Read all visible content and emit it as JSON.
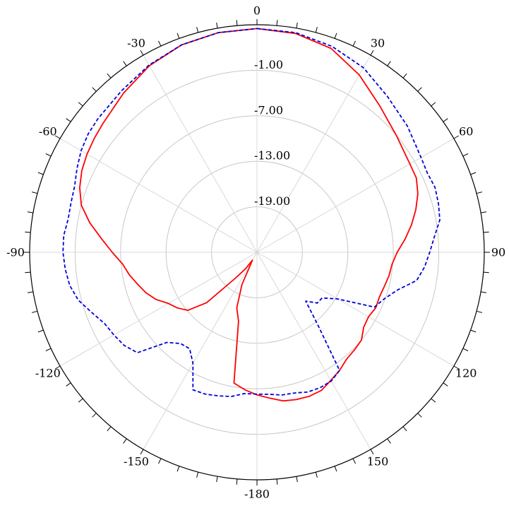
{
  "chart_data": {
    "type": "polar-line",
    "title": "",
    "angle_ticks": [
      0,
      30,
      60,
      90,
      120,
      150,
      180,
      -150,
      -120,
      -90,
      -60,
      -30
    ],
    "angle_labels": [
      "0",
      "30",
      "60",
      "90",
      "120",
      "150",
      "-180",
      "-150",
      "-120",
      "-90",
      "-60",
      "-30"
    ],
    "radial_ticks": [
      -19,
      -13,
      -7,
      -1
    ],
    "radial_labels": [
      "-19.00",
      "-13.00",
      "-7.00",
      "-1.00"
    ],
    "r_range": [
      -25,
      5
    ],
    "grid": true,
    "series": [
      {
        "color": "#ff0000",
        "style": "solid",
        "angles": [
          0,
          10,
          20,
          30,
          40,
          50,
          60,
          65,
          70,
          75,
          80,
          85,
          90,
          95,
          100,
          105,
          110,
          115,
          120,
          125,
          130,
          135,
          140,
          145,
          150,
          155,
          160,
          165,
          170,
          175,
          180,
          -175,
          -170,
          -165,
          -160,
          -155,
          -150,
          -145,
          -140,
          -135,
          -130,
          -125,
          -120,
          -115,
          -110,
          -105,
          -100,
          -95,
          -90,
          -85,
          -80,
          -75,
          -70,
          -65,
          -60,
          -55,
          -50,
          -40,
          -30,
          -20,
          -10,
          0
        ],
        "values": [
          4.5,
          4.3,
          3.6,
          2.0,
          0.2,
          -1.0,
          -1.7,
          -1.8,
          -2.4,
          -3.3,
          -4.3,
          -5.4,
          -6.5,
          -7.1,
          -7.3,
          -7.6,
          -7.8,
          -7.7,
          -8.0,
          -7.8,
          -7.0,
          -6.8,
          -6.6,
          -6.0,
          -5.5,
          -4.9,
          -4.8,
          -4.9,
          -5.1,
          -5.7,
          -6.2,
          -6.8,
          -7.5,
          -15.6,
          -17.2,
          -20.3,
          -23.8,
          -22.3,
          -20.5,
          -15.6,
          -13.1,
          -12.2,
          -11.5,
          -10.3,
          -9.4,
          -8.7,
          -7.9,
          -7.2,
          -5.9,
          -4.4,
          -2.6,
          -1.0,
          -0.1,
          0.5,
          0.9,
          1.2,
          1.5,
          2.4,
          3.4,
          4.1,
          4.4,
          4.5
        ]
      },
      {
        "color": "#0000dd",
        "style": "dashed",
        "angles": [
          0,
          10,
          20,
          30,
          40,
          50,
          60,
          65,
          70,
          75,
          80,
          85,
          90,
          95,
          100,
          105,
          110,
          115,
          120,
          125,
          130,
          135,
          140,
          145,
          150,
          155,
          160,
          165,
          170,
          175,
          180,
          -175,
          -170,
          -165,
          -160,
          -155,
          -150,
          -145,
          -140,
          -135,
          -130,
          -125,
          -120,
          -115,
          -110,
          -105,
          -100,
          -95,
          -90,
          -85,
          -80,
          -75,
          -70,
          -65,
          -60,
          -55,
          -50,
          -40,
          -30,
          -20,
          -10,
          0
        ],
        "values": [
          4.5,
          4.4,
          3.9,
          3.1,
          1.8,
          0.9,
          0.0,
          -0.2,
          0.0,
          -0.2,
          -0.5,
          -1.5,
          -2.2,
          -2.8,
          -3.6,
          -5.8,
          -7.1,
          -7.9,
          -12.7,
          -14.5,
          -14.6,
          -15.9,
          -12.5,
          -6.0,
          -5.4,
          -5.3,
          -5.4,
          -5.8,
          -5.9,
          -6.2,
          -6.3,
          -6.3,
          -5.7,
          -5.4,
          -5.1,
          -5.0,
          -8.1,
          -9.5,
          -9.3,
          -8.2,
          -4.4,
          -3.6,
          -3.2,
          -2.8,
          -1.8,
          -0.6,
          0.1,
          0.4,
          0.6,
          0.6,
          0.3,
          0.4,
          0.6,
          1.2,
          1.8,
          2.2,
          2.4,
          2.8,
          3.5,
          4.1,
          4.4,
          4.5
        ]
      }
    ]
  }
}
